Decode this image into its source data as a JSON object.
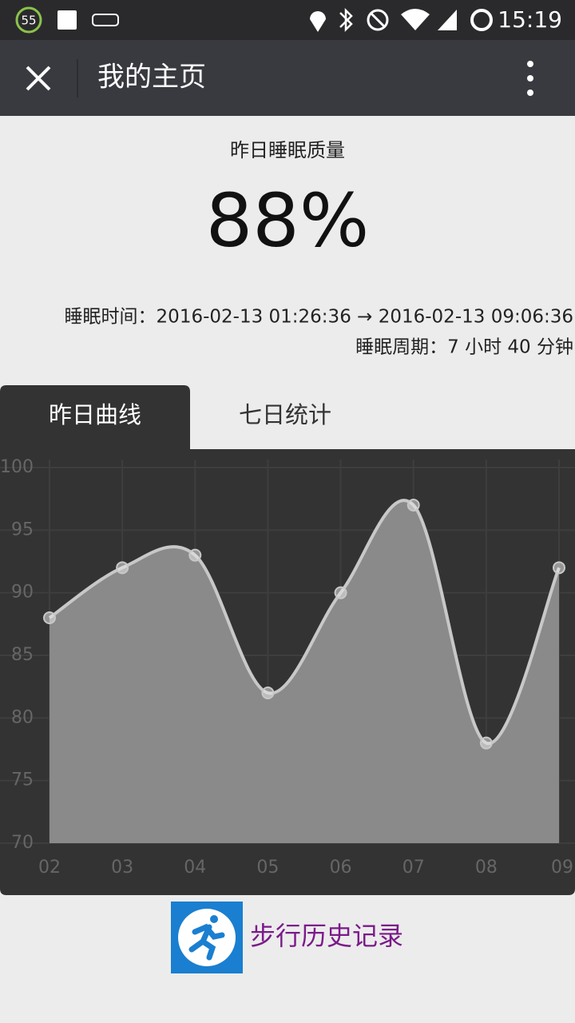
{
  "status_bar": {
    "battery": "55",
    "time": "15:19"
  },
  "app_bar": {
    "title": "我的主页"
  },
  "sleep": {
    "label": "昨日睡眠质量",
    "quality": "88%",
    "time": "睡眠时间：2016-02-13 01:26:36 → 2016-02-13 09:06:36",
    "cycle": "睡眠周期：7 小时 40 分钟"
  },
  "tabs": [
    "昨日曲线",
    "七日统计"
  ],
  "chart_data": {
    "type": "line",
    "categories": [
      "02",
      "03",
      "04",
      "05",
      "06",
      "07",
      "08",
      "09"
    ],
    "values": [
      88,
      92,
      93,
      82,
      90,
      97,
      78,
      92
    ],
    "ylim": [
      70,
      100
    ],
    "yticks": [
      70,
      75,
      80,
      85,
      90,
      95,
      100
    ],
    "grid": true,
    "color": "#8a8a8a",
    "line_color": "#c8c8c8"
  },
  "link": {
    "label": "步行历史记录"
  }
}
